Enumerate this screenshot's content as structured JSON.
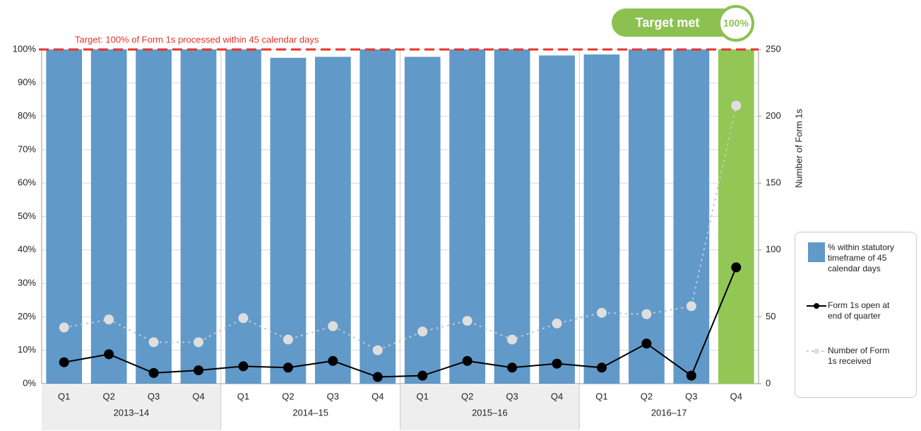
{
  "chart_data": {
    "type": "bar",
    "categories": [
      "Q1",
      "Q2",
      "Q3",
      "Q4",
      "Q1",
      "Q2",
      "Q3",
      "Q4",
      "Q1",
      "Q2",
      "Q3",
      "Q4",
      "Q1",
      "Q2",
      "Q3",
      "Q4"
    ],
    "groups": [
      "2013–14",
      "2014–15",
      "2015–16",
      "2016–17"
    ],
    "series": [
      {
        "name": "% within statutory timeframe of 45 calendar days",
        "type": "bar",
        "colors": [
          "#6199c9",
          "#6199c9",
          "#6199c9",
          "#6199c9",
          "#6199c9",
          "#6199c9",
          "#6199c9",
          "#6199c9",
          "#6199c9",
          "#6199c9",
          "#6199c9",
          "#6199c9",
          "#6199c9",
          "#6199c9",
          "#6199c9",
          "#92c755"
        ],
        "values": [
          100,
          100,
          100,
          100,
          100,
          97.5,
          97.8,
          100,
          97.8,
          100,
          100,
          98.2,
          98.5,
          100,
          100,
          100
        ]
      },
      {
        "name": "Form 1s open at end of quarter",
        "type": "line",
        "axis": "y2",
        "color": "#000000",
        "values": [
          16,
          22,
          8,
          10,
          13,
          12,
          17,
          5,
          6,
          17,
          12,
          15,
          12,
          30,
          6,
          87
        ]
      },
      {
        "name": "Number of Form 1s received",
        "type": "line",
        "axis": "y2",
        "color": "#c8c8c8",
        "dashed": true,
        "values": [
          42,
          48,
          31,
          31,
          49,
          33,
          43,
          25,
          39,
          47,
          33,
          45,
          53,
          52,
          58,
          208
        ]
      }
    ],
    "ylim": [
      0,
      100
    ],
    "yticks": [
      {
        "value": 0,
        "label": "0%"
      },
      {
        "value": 10,
        "label": "10%"
      },
      {
        "value": 20,
        "label": "20%"
      },
      {
        "value": 30,
        "label": "30%"
      },
      {
        "value": 40,
        "label": "40%"
      },
      {
        "value": 50,
        "label": "50%"
      },
      {
        "value": 60,
        "label": "60%"
      },
      {
        "value": 70,
        "label": "70%"
      },
      {
        "value": 80,
        "label": "80%"
      },
      {
        "value": 90,
        "label": "90%"
      },
      {
        "value": 100,
        "label": "100%"
      }
    ],
    "y2lim": [
      0,
      250
    ],
    "y2ticks": [
      0,
      50,
      100,
      150,
      200,
      250
    ],
    "y2label": "Number of Form 1s",
    "grid": true,
    "target": {
      "value": 100,
      "label": "Target: 100% of Form 1s processed within 45 calendar days",
      "color": "#e8332a"
    },
    "badge": {
      "text": "Target met",
      "value_label": "100%",
      "color": "#8cc152"
    }
  }
}
